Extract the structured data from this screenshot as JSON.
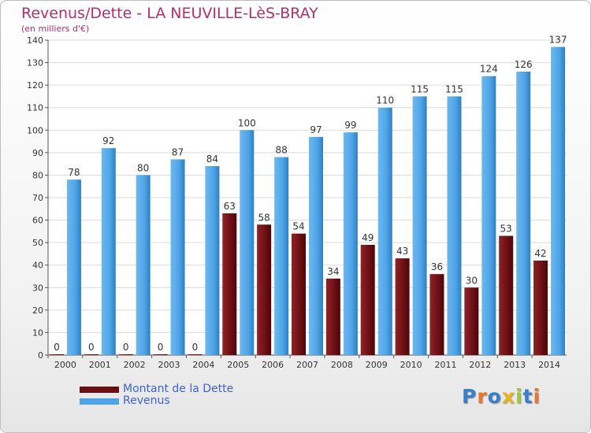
{
  "header": {
    "title": "Revenus/Dette - LA NEUVILLE-LèS-BRAY",
    "subtitle": "(en milliers d'€)"
  },
  "legend": {
    "items": [
      {
        "label": "Montant de la Dette",
        "color": "#6b0f14"
      },
      {
        "label": "Revenus",
        "color": "#4ea4e6"
      }
    ]
  },
  "logo": {
    "text": "Proxiti",
    "colors": [
      "#3a7fc9",
      "#e8762b",
      "#3a7fc9",
      "#e8b520",
      "#9acb3c",
      "#3a7fc9",
      "#e8762b"
    ]
  },
  "chart_data": {
    "type": "bar",
    "categories": [
      "2000",
      "2001",
      "2002",
      "2003",
      "2004",
      "2005",
      "2006",
      "2007",
      "2008",
      "2009",
      "2010",
      "2011",
      "2012",
      "2013",
      "2014"
    ],
    "series": [
      {
        "name": "Montant de la Dette",
        "values": [
          0,
          0,
          0,
          0,
          0,
          63,
          58,
          54,
          34,
          49,
          43,
          36,
          30,
          53,
          42
        ],
        "color": "#6b0f14"
      },
      {
        "name": "Revenus",
        "values": [
          78,
          92,
          80,
          87,
          84,
          100,
          88,
          97,
          99,
          110,
          115,
          115,
          124,
          126,
          137
        ],
        "color": "#4ea4e6"
      }
    ],
    "yticks": [
      0,
      10,
      20,
      30,
      40,
      50,
      60,
      70,
      80,
      90,
      100,
      110,
      120,
      130,
      140
    ],
    "ylim": [
      0,
      140
    ],
    "grid": true,
    "legend_position": "bottom-left"
  }
}
